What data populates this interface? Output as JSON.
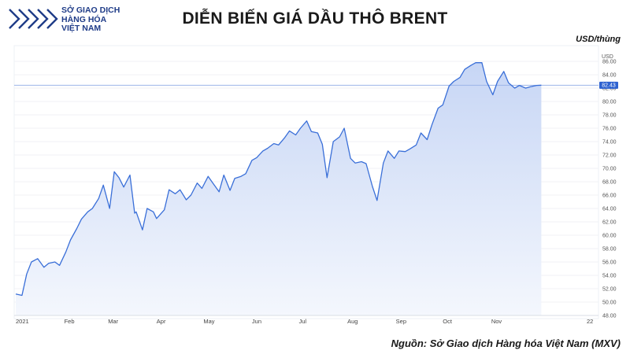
{
  "header": {
    "logo_lines": [
      "SỞ GIAO DỊCH",
      "HÀNG HÓA",
      "VIỆT NAM"
    ],
    "title": "DIỄN BIẾN GIÁ DẦU THÔ BRENT",
    "unit": "USD/thùng"
  },
  "footer": {
    "source": "Nguồn: Sở Giao dịch Hàng hóa Việt Nam (MXV)"
  },
  "colors": {
    "line": "#3a6fd8",
    "fill_top": "#c7d6f5",
    "fill_bottom": "#f4f7fd",
    "price_tag": "#2e62d0",
    "logo": "#1f3c88"
  },
  "chart_data": {
    "type": "area",
    "y_axis_label": "USD",
    "ylim": [
      48,
      88
    ],
    "yticks": [
      "48.00",
      "50.00",
      "52.00",
      "54.00",
      "56.00",
      "58.00",
      "60.00",
      "62.00",
      "64.00",
      "66.00",
      "68.00",
      "70.00",
      "72.00",
      "74.00",
      "76.00",
      "78.00",
      "80.00",
      "82.00",
      "84.00",
      "86.00"
    ],
    "xticks": [
      "2021",
      "Feb",
      "Mar",
      "Apr",
      "May",
      "Jun",
      "Jul",
      "Aug",
      "Sep",
      "Oct",
      "Nov",
      "22"
    ],
    "last_price_label": "82.43",
    "last_price": 82.43,
    "series": [
      {
        "x": [
          "2021-01-01",
          "2021-01-05",
          "2021-01-08",
          "2021-01-11",
          "2021-01-15",
          "2021-01-19",
          "2021-01-22",
          "2021-01-26",
          "2021-01-29",
          "2021-02-02",
          "2021-02-05",
          "2021-02-09",
          "2021-02-12",
          "2021-02-16",
          "2021-02-19",
          "2021-02-23",
          "2021-02-26",
          "2021-03-02",
          "2021-03-05",
          "2021-03-08",
          "2021-03-11",
          "2021-03-15",
          "2021-03-18",
          "2021-03-19",
          "2021-03-23",
          "2021-03-26",
          "2021-03-30",
          "2021-04-01",
          "2021-04-06",
          "2021-04-09",
          "2021-04-13",
          "2021-04-16",
          "2021-04-20",
          "2021-04-23",
          "2021-04-27",
          "2021-04-30",
          "2021-05-04",
          "2021-05-07",
          "2021-05-11",
          "2021-05-14",
          "2021-05-18",
          "2021-05-21",
          "2021-05-25",
          "2021-05-28",
          "2021-06-01",
          "2021-06-04",
          "2021-06-08",
          "2021-06-11",
          "2021-06-15",
          "2021-06-18",
          "2021-06-22",
          "2021-06-25",
          "2021-06-29",
          "2021-07-02",
          "2021-07-06",
          "2021-07-09",
          "2021-07-13",
          "2021-07-16",
          "2021-07-19",
          "2021-07-23",
          "2021-07-27",
          "2021-07-30",
          "2021-08-03",
          "2021-08-06",
          "2021-08-10",
          "2021-08-13",
          "2021-08-17",
          "2021-08-20",
          "2021-08-24",
          "2021-08-27",
          "2021-08-31",
          "2021-09-03",
          "2021-09-07",
          "2021-09-10",
          "2021-09-14",
          "2021-09-17",
          "2021-09-21",
          "2021-09-24",
          "2021-09-28",
          "2021-10-01",
          "2021-10-05",
          "2021-10-08",
          "2021-10-12",
          "2021-10-15",
          "2021-10-19",
          "2021-10-22",
          "2021-10-26",
          "2021-10-29",
          "2021-11-02",
          "2021-11-05",
          "2021-11-09",
          "2021-11-12",
          "2021-11-16",
          "2021-11-19",
          "2021-11-23",
          "2021-11-26",
          "2021-11-30",
          "2021-12-03"
        ],
        "y": [
          51.2,
          51.0,
          54.2,
          56.0,
          56.5,
          55.2,
          55.8,
          56.0,
          55.5,
          57.5,
          59.3,
          61.0,
          62.4,
          63.5,
          64.0,
          65.5,
          67.5,
          64.0,
          69.5,
          68.6,
          67.2,
          69.0,
          63.3,
          63.5,
          60.8,
          64.0,
          63.5,
          62.5,
          63.8,
          66.8,
          66.2,
          66.8,
          65.3,
          66.0,
          67.8,
          67.0,
          68.8,
          67.8,
          66.5,
          69.0,
          66.7,
          68.5,
          68.8,
          69.2,
          71.2,
          71.6,
          72.6,
          73.0,
          73.7,
          73.5,
          74.6,
          75.6,
          75.0,
          76.0,
          77.1,
          75.5,
          75.3,
          73.6,
          68.6,
          74.0,
          74.7,
          76.0,
          71.5,
          70.8,
          71.0,
          70.7,
          67.3,
          65.2,
          70.8,
          72.6,
          71.5,
          72.6,
          72.5,
          72.9,
          73.5,
          75.3,
          74.3,
          76.5,
          79.0,
          79.5,
          82.3,
          83.0,
          83.6,
          84.8,
          85.4,
          85.8,
          85.8,
          83.0,
          81.0,
          83.0,
          84.5,
          82.8,
          82.0,
          82.4,
          82.0,
          82.2,
          82.4,
          82.43
        ]
      }
    ]
  }
}
